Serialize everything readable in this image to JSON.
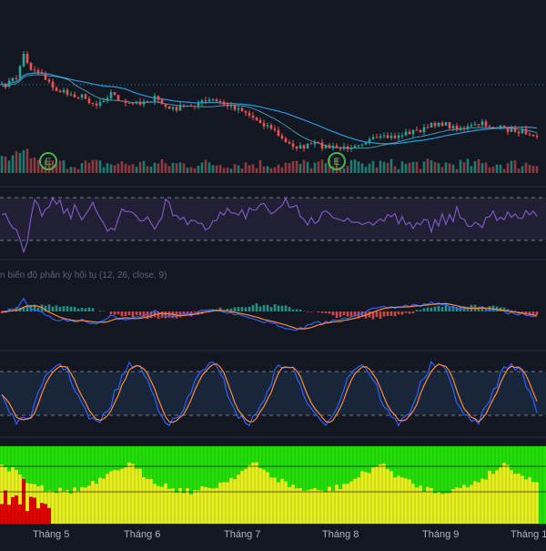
{
  "colors": {
    "background": "#131722",
    "separator": "#2a2e39",
    "up": "#26a69a",
    "down": "#ef5350",
    "vol_up": "#1f7a70",
    "vol_down": "#8e3a40",
    "ma_slow": "#2a8fd4",
    "ma_fast": "#5ec8e6",
    "level_line": "#26a69a",
    "rsi_line": "#7e57c2",
    "rsi_band": "#2a2540",
    "macd_line": "#2962ff",
    "signal_line": "#ff8a3d",
    "stoch_k": "#2962ff",
    "stoch_d": "#ff8a3d",
    "stoch_band": "#1b2a40",
    "marker": "#4caf50",
    "heat_green": "#26e00a",
    "heat_yellow": "#e6f01e",
    "heat_red": "#e50000"
  },
  "indicator": {
    "macd_title": "n biến độ phân kỳ hội tụ (12, 26, close, 9)"
  },
  "markers": [
    {
      "label": "E",
      "x_month": "Tháng 5"
    },
    {
      "label": "E",
      "x_month": "Tháng 8"
    }
  ],
  "time_axis": {
    "labels": [
      "Tháng 5",
      "Tháng 6",
      "Tháng 7",
      "Tháng 8",
      "Tháng 9",
      "Tháng 1"
    ]
  }
}
